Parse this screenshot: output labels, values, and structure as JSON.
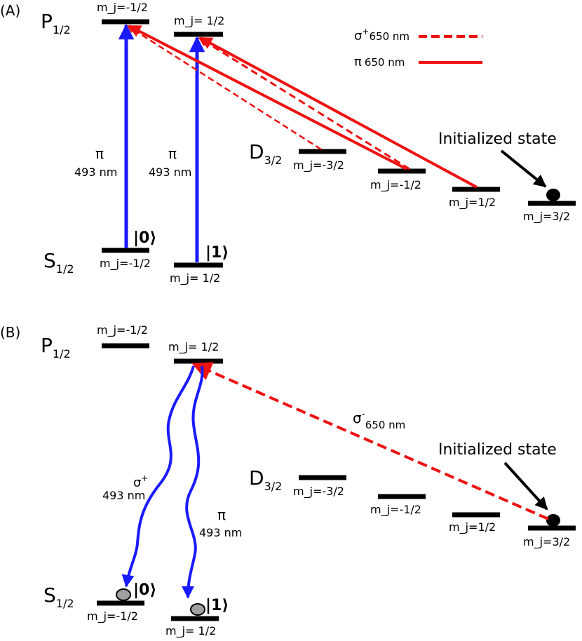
{
  "panel_a": {
    "label": "(A)",
    "p_level": {
      "letter": "P",
      "sub": "1/2"
    },
    "p_states": [
      "m_j=-1/2",
      "m_j= 1/2"
    ],
    "d_level": {
      "letter": "D",
      "sub": "3/2"
    },
    "d_states": [
      "m_j=-3/2",
      "m_j=-1/2",
      "m_j=1/2",
      "m_j=3/2"
    ],
    "s_level": {
      "letter": "S",
      "sub": "1/2"
    },
    "s_states": [
      "m_j=-1/2",
      "m_j= 1/2"
    ],
    "ket0": "|0⟩",
    "ket1": "|1⟩",
    "blue_symbol": "π",
    "blue_wavelength": "493 nm",
    "legend": {
      "sigma_plus": {
        "sym": "σ",
        "sup": "+",
        "text": "650 nm"
      },
      "pi": {
        "sym": "π",
        "text": "650 nm"
      }
    },
    "initialized": "Initialized state"
  },
  "panel_b": {
    "label": "(B)",
    "p_level": {
      "letter": "P",
      "sub": "1/2"
    },
    "p_states": [
      "m_j=-1/2",
      "m_j= 1/2"
    ],
    "d_level": {
      "letter": "D",
      "sub": "3/2"
    },
    "d_states": [
      "m_j=-3/2",
      "m_j=-1/2",
      "m_j=1/2",
      "m_j=3/2"
    ],
    "s_level": {
      "letter": "S",
      "sub": "1/2"
    },
    "s_states": [
      "m_j=-1/2",
      "m_j= 1/2"
    ],
    "ket0": "|0⟩",
    "ket1": "|1⟩",
    "sigma_minus": {
      "sym": "σ",
      "sup": "-",
      "text": "650 nm"
    },
    "decay_sigma": {
      "sym": "σ",
      "sup": "+",
      "text": "493 nm"
    },
    "decay_pi": {
      "sym": "π",
      "text": "493 nm"
    },
    "initialized": "Initialized state"
  },
  "colors": {
    "blue": "#1a1aff",
    "red": "#ee1111",
    "black": "#000000",
    "gray": "#a0a0a0"
  }
}
